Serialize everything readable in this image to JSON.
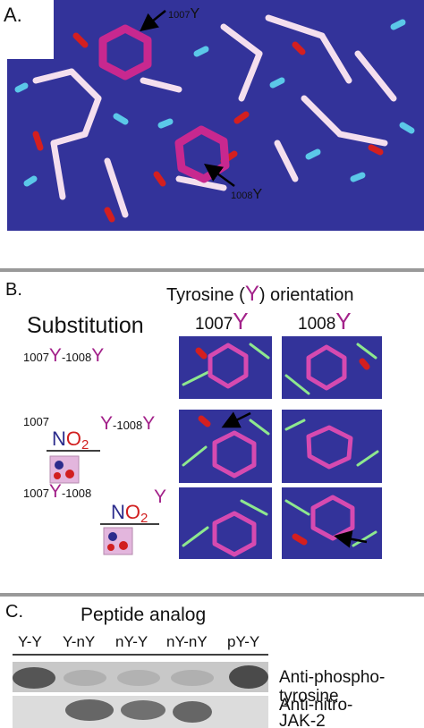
{
  "panel_a": {
    "label": "A.",
    "annotations": [
      {
        "number": "1007",
        "letter": "Y"
      },
      {
        "number": "1008",
        "letter": "Y"
      }
    ]
  },
  "panel_b": {
    "label": "B.",
    "title": {
      "before": "Tyrosine (",
      "letter": "Y",
      "after": ") orientation"
    },
    "row_header": "Substitution",
    "columns": [
      {
        "number": "1007",
        "letter": "Y"
      },
      {
        "number": "1008",
        "letter": "Y"
      }
    ],
    "rows": [
      [
        "1007",
        "Y",
        "-1008",
        "Y"
      ],
      [
        "1007",
        "N",
        "O",
        "2",
        "Y",
        "-1008",
        "Y"
      ],
      [
        "1007",
        "Y",
        "-1008",
        "N",
        "O",
        "2",
        "Y"
      ]
    ]
  },
  "panel_c": {
    "label": "C.",
    "title": "Peptide analog",
    "lanes": [
      "Y-Y",
      "Y-nY",
      "nY-Y",
      "nY-nY",
      "pY-Y"
    ],
    "antibodies": [
      [
        "Anti-phospho-",
        "tyrosine"
      ],
      [
        "Anti-nitro-",
        "JAK-2"
      ]
    ]
  }
}
